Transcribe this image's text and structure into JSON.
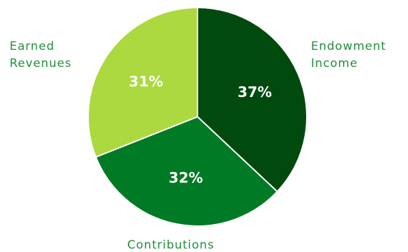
{
  "chart_data": {
    "type": "pie",
    "slices": [
      {
        "label_lines": [
          "Endowment",
          "Income"
        ],
        "value": 37,
        "value_label": "37%",
        "color": "#004a0e"
      },
      {
        "label_lines": [
          "Contributions"
        ],
        "value": 32,
        "value_label": "32%",
        "color": "#007a25"
      },
      {
        "label_lines": [
          "Earned",
          "Revenues"
        ],
        "value": 31,
        "value_label": "31%",
        "color": "#acd93f"
      }
    ],
    "start_angle_deg": 0,
    "direction": "clockwise",
    "label_color": "#1f8f3a",
    "value_label_color": "#ffffff",
    "separator_color": "#ffffff"
  }
}
